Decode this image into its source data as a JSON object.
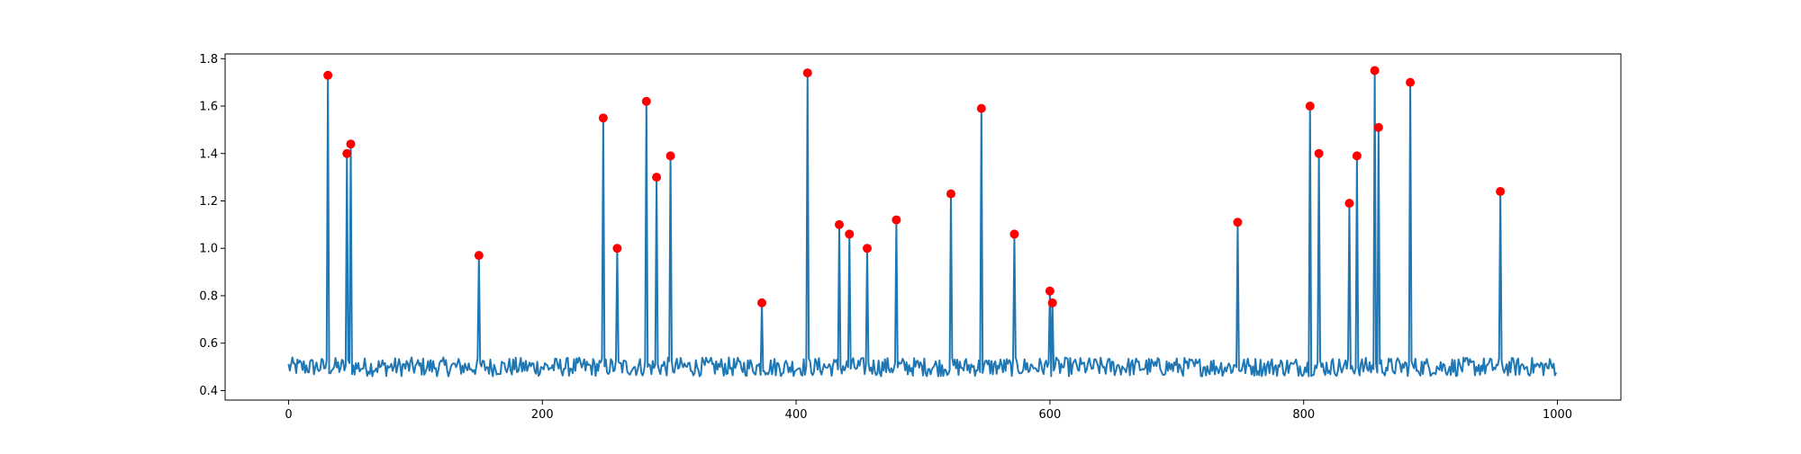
{
  "chart_data": {
    "type": "line",
    "title": "",
    "xlabel": "",
    "ylabel": "",
    "xlim": [
      -50,
      1050
    ],
    "ylim": [
      0.36,
      1.82
    ],
    "xticks": [
      0,
      200,
      400,
      600,
      800,
      1000
    ],
    "yticks": [
      0.4,
      0.6,
      0.8,
      1.0,
      1.2,
      1.4,
      1.6,
      1.8
    ],
    "xtick_labels": [
      "0",
      "200",
      "400",
      "600",
      "800",
      "1000"
    ],
    "ytick_labels": [
      "0.4",
      "0.6",
      "0.8",
      "1.0",
      "1.2",
      "1.4",
      "1.6",
      "1.8"
    ],
    "grid": false,
    "series": [
      {
        "kind": "line",
        "color": "#1f77b4",
        "n_points": 1000,
        "baseline": 0.5,
        "noise_amplitude": 0.04
      },
      {
        "kind": "scatter",
        "color": "#ff0000",
        "points": [
          {
            "x": 31,
            "y": 1.73
          },
          {
            "x": 46,
            "y": 1.4
          },
          {
            "x": 49,
            "y": 1.44
          },
          {
            "x": 150,
            "y": 0.97
          },
          {
            "x": 248,
            "y": 1.55
          },
          {
            "x": 259,
            "y": 1.0
          },
          {
            "x": 282,
            "y": 1.62
          },
          {
            "x": 290,
            "y": 1.3
          },
          {
            "x": 301,
            "y": 1.39
          },
          {
            "x": 373,
            "y": 0.77
          },
          {
            "x": 409,
            "y": 1.74
          },
          {
            "x": 434,
            "y": 1.1
          },
          {
            "x": 442,
            "y": 1.06
          },
          {
            "x": 456,
            "y": 1.0
          },
          {
            "x": 479,
            "y": 1.12
          },
          {
            "x": 522,
            "y": 1.23
          },
          {
            "x": 546,
            "y": 1.59
          },
          {
            "x": 572,
            "y": 1.06
          },
          {
            "x": 600,
            "y": 0.82
          },
          {
            "x": 602,
            "y": 0.77
          },
          {
            "x": 748,
            "y": 1.11
          },
          {
            "x": 805,
            "y": 1.6
          },
          {
            "x": 812,
            "y": 1.4
          },
          {
            "x": 836,
            "y": 1.19
          },
          {
            "x": 842,
            "y": 1.39
          },
          {
            "x": 856,
            "y": 1.75
          },
          {
            "x": 859,
            "y": 1.51
          },
          {
            "x": 884,
            "y": 1.7
          },
          {
            "x": 955,
            "y": 1.24
          }
        ]
      }
    ]
  }
}
